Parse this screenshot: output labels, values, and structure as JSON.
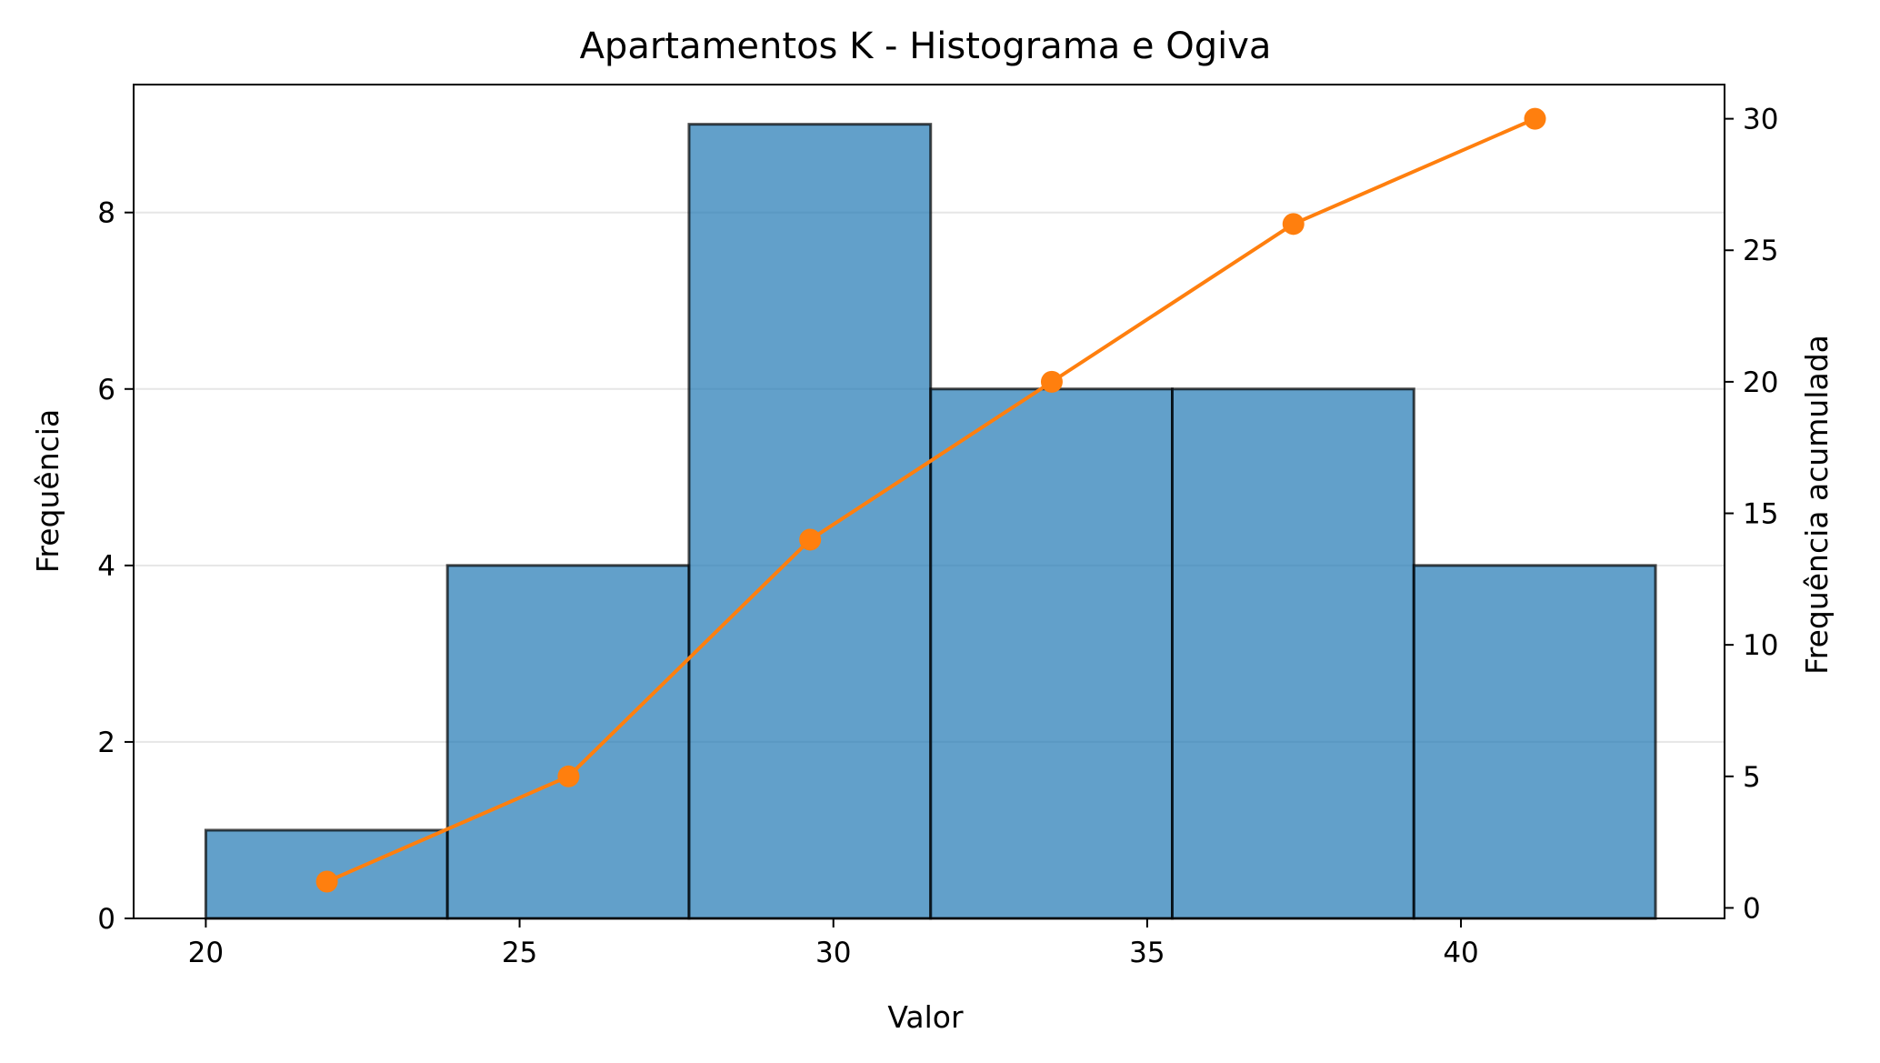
{
  "chart_data": {
    "type": "bar",
    "title": "Apartamentos K - Histograma e Ogiva",
    "xlabel": "Valor",
    "ylabel": "Frequência",
    "y2label": "Frequência acumulada",
    "xlim": [
      18.85,
      44.2
    ],
    "ylim": [
      0,
      9.45
    ],
    "y2lim": [
      -0.4,
      31.3
    ],
    "x_ticks": [
      20,
      25,
      30,
      35,
      40
    ],
    "y_ticks": [
      0,
      2,
      4,
      6,
      8
    ],
    "y2_ticks": [
      0,
      5,
      10,
      15,
      20,
      25,
      30
    ],
    "grid": "horizontal",
    "bins": [
      {
        "start": 20.0,
        "end": 23.85,
        "count": 1
      },
      {
        "start": 23.85,
        "end": 27.7,
        "count": 4
      },
      {
        "start": 27.7,
        "end": 31.55,
        "count": 9
      },
      {
        "start": 31.55,
        "end": 35.4,
        "count": 6
      },
      {
        "start": 35.4,
        "end": 39.25,
        "count": 6
      },
      {
        "start": 39.25,
        "end": 43.1,
        "count": 4
      }
    ],
    "ogive": {
      "x": [
        21.93,
        25.78,
        29.63,
        33.48,
        37.33,
        41.18
      ],
      "y": [
        1,
        5,
        14,
        20,
        26,
        30
      ]
    },
    "colors": {
      "bar_fill": "#1f77b4",
      "bar_edge": "#000000",
      "ogive": "#ff7f0e",
      "grid": "#e6e6e6"
    }
  }
}
